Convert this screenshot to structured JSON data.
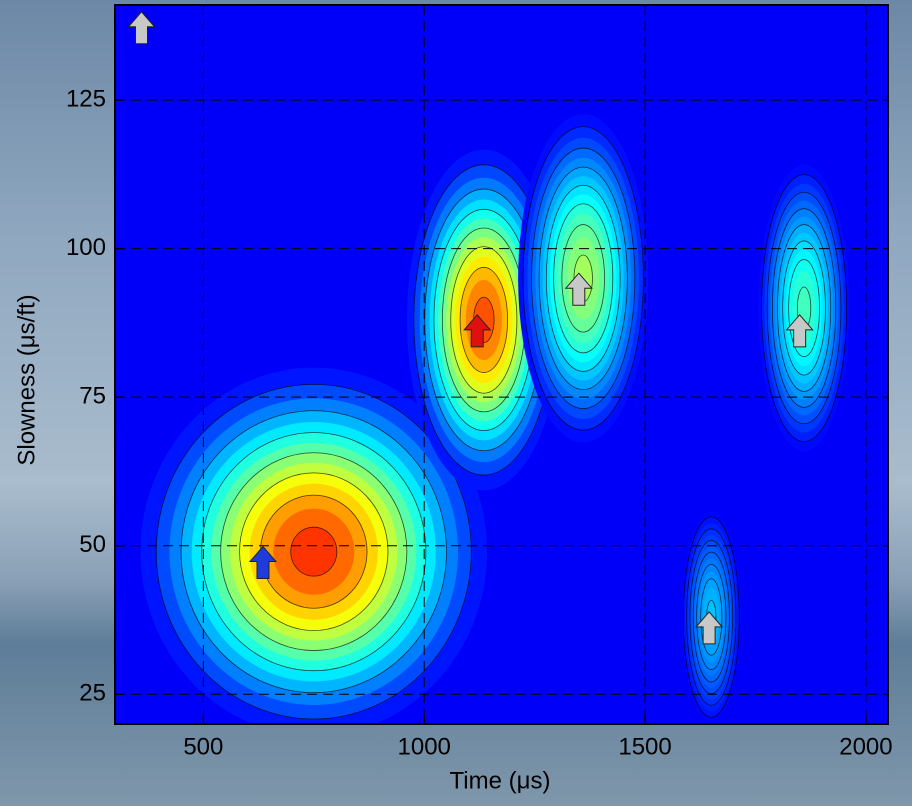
{
  "chart_data": {
    "type": "contour",
    "x_label": "Time (μs)",
    "y_label": "Slowness (μs/ft)",
    "xlim": [
      300,
      2050
    ],
    "ylim": [
      20,
      141
    ],
    "xticks": [
      500,
      1000,
      1500,
      2000
    ],
    "yticks": [
      25,
      50,
      75,
      100,
      125
    ],
    "grid": true,
    "background_level": 0.12,
    "blobs": [
      {
        "x": 750,
        "y": 49,
        "sx": 190,
        "sy": 15,
        "level": 0.85
      },
      {
        "x": 1135,
        "y": 88,
        "sx": 85,
        "sy": 14,
        "level": 0.82
      },
      {
        "x": 1360,
        "y": 95,
        "sx": 80,
        "sy": 15,
        "level": 0.55
      },
      {
        "x": 1860,
        "y": 90,
        "sx": 60,
        "sy": 14,
        "level": 0.45
      },
      {
        "x": 1650,
        "y": 38,
        "sx": 45,
        "sy": 12,
        "level": 0.32
      }
    ],
    "markers": [
      {
        "x": 360,
        "y": 137,
        "color": "#c8c8c8"
      },
      {
        "x": 635,
        "y": 47,
        "color": "#1e3cdc"
      },
      {
        "x": 1120,
        "y": 86,
        "color": "#e01010"
      },
      {
        "x": 1350,
        "y": 93,
        "color": "#c8c8c8"
      },
      {
        "x": 1850,
        "y": 86,
        "color": "#c8c8c8"
      },
      {
        "x": 1645,
        "y": 36,
        "color": "#c8c8c8"
      }
    ]
  }
}
